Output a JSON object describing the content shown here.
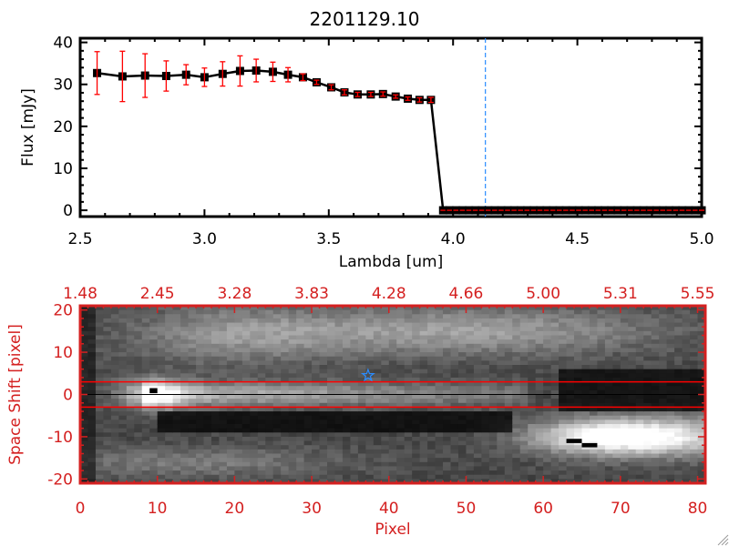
{
  "chart_data": [
    {
      "type": "line",
      "title": "2201129.10",
      "xlabel": "Lambda [um]",
      "ylabel": "Flux [mJy]",
      "xlim": [
        2.5,
        5.0
      ],
      "ylim": [
        -1.5,
        41
      ],
      "xticks": [
        "2.5",
        "3.0",
        "3.5",
        "4.0",
        "4.5",
        "5.0"
      ],
      "xtick_values": [
        2.5,
        3.0,
        3.5,
        4.0,
        4.5,
        5.0
      ],
      "yticks": [
        "0",
        "10",
        "20",
        "30",
        "40"
      ],
      "ytick_values": [
        0,
        10,
        20,
        30,
        40
      ],
      "colors": {
        "line": "#000000",
        "errorbar": "#ff0000",
        "marker": "#000000",
        "vline": "#2a8cff"
      },
      "vline_x": 4.13,
      "x": [
        2.568,
        2.67,
        2.761,
        2.846,
        2.926,
        3.0,
        3.073,
        3.143,
        3.208,
        3.275,
        3.336,
        3.396,
        3.451,
        3.51,
        3.563,
        3.616,
        3.669,
        3.718,
        3.769,
        3.818,
        3.865,
        3.911,
        3.96,
        3.986,
        4.012,
        4.038,
        4.064,
        4.09,
        4.116,
        4.142,
        4.168,
        4.194,
        4.22,
        4.246,
        4.272,
        4.298,
        4.324,
        4.35,
        4.376,
        4.402,
        4.428,
        4.454,
        4.48,
        4.506,
        4.532,
        4.558,
        4.584,
        4.61,
        4.636,
        4.662,
        4.688,
        4.714,
        4.74,
        4.766,
        4.792,
        4.818,
        4.844,
        4.87,
        4.896,
        4.922,
        4.948,
        4.974,
        5.0
      ],
      "y": [
        32.7,
        31.9,
        32.1,
        32.0,
        32.3,
        31.7,
        32.5,
        33.2,
        33.3,
        33.0,
        32.3,
        31.7,
        30.5,
        29.3,
        28.1,
        27.6,
        27.6,
        27.7,
        27.1,
        26.6,
        26.3,
        26.3,
        0,
        0,
        0,
        0,
        0,
        0,
        0,
        0,
        0,
        0,
        0,
        0,
        0,
        0,
        0,
        0,
        0,
        0,
        0,
        0,
        0,
        0,
        0,
        0,
        0,
        0,
        0,
        0,
        0,
        0,
        0,
        0,
        0,
        0,
        0,
        0,
        0,
        0,
        0,
        0,
        0
      ],
      "yerr": [
        5.1,
        6.0,
        5.2,
        3.6,
        2.4,
        2.2,
        2.9,
        3.6,
        2.7,
        2.3,
        1.7,
        0.8,
        0.5,
        0.6,
        0.6,
        0.5,
        0.5,
        0.5,
        0.4,
        0.4,
        0.5,
        0.6,
        0,
        0,
        0,
        0,
        0,
        0,
        0,
        0,
        0,
        0,
        0,
        0,
        0,
        0,
        0,
        0,
        0,
        0,
        0,
        0,
        0,
        0,
        0,
        0,
        0,
        0,
        0,
        0,
        0,
        0,
        0,
        0,
        0,
        0,
        0,
        0,
        0,
        0,
        0,
        0,
        0
      ]
    },
    {
      "type": "heatmap",
      "xlabel": "Pixel",
      "ylabel": "Space Shift [pixel]",
      "xlim": [
        0,
        81
      ],
      "ylim": [
        -21,
        21
      ],
      "xticks": [
        "0",
        "10",
        "20",
        "30",
        "40",
        "50",
        "60",
        "70",
        "80"
      ],
      "xtick_values": [
        0,
        10,
        20,
        30,
        40,
        50,
        60,
        70,
        80
      ],
      "top_xticks": [
        "1.48",
        "2.45",
        "3.28",
        "3.83",
        "4.28",
        "4.66",
        "5.00",
        "5.31",
        "5.55"
      ],
      "yticks": [
        "20",
        "10",
        "0",
        "-10",
        "-20"
      ],
      "ytick_values": [
        20,
        10,
        0,
        -10,
        -20
      ],
      "colormap": "grayscale",
      "colors": {
        "axis": "#d42020",
        "aperture": "#ff0000",
        "center": "#000000",
        "star": "#2a8cff"
      },
      "aperture_lines_y": [
        3,
        -3
      ],
      "center_line_y": 0,
      "star_marker": {
        "x": 37.3,
        "y": 4.5
      }
    }
  ]
}
